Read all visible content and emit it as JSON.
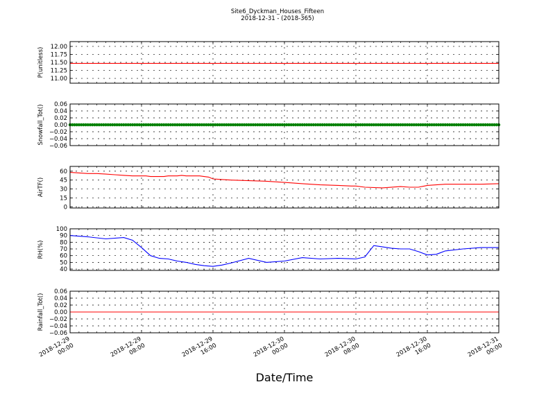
{
  "figure": {
    "title": "Site6_Dyckman_Houses_Fifteen",
    "subtitle": "2018-12-31 - (2018-365)",
    "xlabel": "Date/Time"
  },
  "chart_data": [
    {
      "type": "line",
      "ylabel": "P(unitless)",
      "ylim": [
        10.85,
        12.15
      ],
      "yticks": [
        "12.00",
        "11.75",
        "11.50",
        "11.25",
        "11.00"
      ],
      "ytick_values": [
        12.0,
        11.75,
        11.5,
        11.25,
        11.0
      ],
      "grid": true,
      "color": "#ff0000",
      "x": [
        "2018-12-29 00:00",
        "2018-12-31 00:00"
      ],
      "y": [
        11.47,
        11.47
      ]
    },
    {
      "type": "line",
      "ylabel": "Snowfall_Tot()",
      "ylim": [
        -0.06,
        0.06
      ],
      "yticks": [
        "0.06",
        "0.04",
        "0.02",
        "0.00",
        "−0.02",
        "−0.04",
        "−0.06"
      ],
      "ytick_values": [
        0.06,
        0.04,
        0.02,
        0.0,
        -0.02,
        -0.04,
        -0.06
      ],
      "grid": true,
      "color": "#008000",
      "markers": true,
      "x": [
        "2018-12-29 00:00",
        "2018-12-31 00:00"
      ],
      "y": [
        0,
        0
      ]
    },
    {
      "type": "line",
      "ylabel": "AirTF()",
      "ylim": [
        -2,
        68
      ],
      "yticks": [
        "60",
        "45",
        "30",
        "15",
        "0"
      ],
      "ytick_values": [
        60,
        45,
        30,
        15,
        0
      ],
      "grid": true,
      "color": "#ff0000",
      "x": [
        "2018-12-29 00:00",
        "2018-12-29 01:00",
        "2018-12-29 02:00",
        "2018-12-29 03:00",
        "2018-12-29 04:00",
        "2018-12-29 05:00",
        "2018-12-29 06:00",
        "2018-12-29 07:00",
        "2018-12-29 07:30",
        "2018-12-29 08:00",
        "2018-12-29 08:30",
        "2018-12-29 09:00",
        "2018-12-29 10:00",
        "2018-12-29 10:30",
        "2018-12-29 11:00",
        "2018-12-29 11:30",
        "2018-12-29 12:00",
        "2018-12-29 12:30",
        "2018-12-29 13:00",
        "2018-12-29 13:30",
        "2018-12-29 14:00",
        "2018-12-29 14:30",
        "2018-12-29 15:00",
        "2018-12-29 15:30",
        "2018-12-29 16:00",
        "2018-12-29 17:00",
        "2018-12-29 18:00",
        "2018-12-29 20:00",
        "2018-12-29 22:00",
        "2018-12-30 00:00",
        "2018-12-30 02:00",
        "2018-12-30 04:00",
        "2018-12-30 06:00",
        "2018-12-30 07:30",
        "2018-12-30 07:50",
        "2018-12-30 08:00",
        "2018-12-30 09:00",
        "2018-12-30 11:00",
        "2018-12-30 13:00",
        "2018-12-30 14:00",
        "2018-12-30 15:00",
        "2018-12-30 15:40",
        "2018-12-30 16:00",
        "2018-12-30 17:00",
        "2018-12-30 18:00",
        "2018-12-30 20:00",
        "2018-12-30 22:00",
        "2018-12-31 00:00"
      ],
      "y": [
        58,
        57,
        56,
        56,
        55,
        54,
        53,
        52,
        52,
        52,
        52,
        51,
        51,
        51,
        52,
        52,
        52,
        53,
        52,
        52,
        52,
        52,
        51,
        50,
        47,
        46,
        45,
        44,
        43,
        41,
        39,
        37,
        36,
        35,
        35,
        35,
        33,
        32,
        34,
        33,
        33,
        35,
        36,
        37,
        38,
        38,
        38,
        39
      ]
    },
    {
      "type": "line",
      "ylabel": "RH(%)",
      "ylim": [
        38,
        100
      ],
      "yticks": [
        "100",
        "90",
        "80",
        "70",
        "60",
        "50",
        "40"
      ],
      "ytick_values": [
        100,
        90,
        80,
        70,
        60,
        50,
        40
      ],
      "grid": true,
      "color": "#0000ff",
      "x": [
        "2018-12-29 00:00",
        "2018-12-29 02:00",
        "2018-12-29 04:00",
        "2018-12-29 06:00",
        "2018-12-29 07:00",
        "2018-12-29 08:00",
        "2018-12-29 09:00",
        "2018-12-29 10:00",
        "2018-12-29 11:00",
        "2018-12-29 12:00",
        "2018-12-29 13:00",
        "2018-12-29 14:00",
        "2018-12-29 15:00",
        "2018-12-29 16:00",
        "2018-12-29 17:00",
        "2018-12-29 18:00",
        "2018-12-29 20:00",
        "2018-12-29 22:00",
        "2018-12-30 00:00",
        "2018-12-30 02:00",
        "2018-12-30 04:00",
        "2018-12-30 06:00",
        "2018-12-30 08:00",
        "2018-12-30 09:00",
        "2018-12-30 10:00",
        "2018-12-30 11:00",
        "2018-12-30 12:00",
        "2018-12-30 13:00",
        "2018-12-30 14:00",
        "2018-12-30 15:00",
        "2018-12-30 16:00",
        "2018-12-30 17:00",
        "2018-12-30 18:00",
        "2018-12-30 20:00",
        "2018-12-30 22:00",
        "2018-12-31 00:00"
      ],
      "y": [
        90,
        88,
        85,
        87,
        83,
        72,
        60,
        56,
        55,
        52,
        50,
        47,
        45,
        44,
        46,
        49,
        56,
        50,
        52,
        57,
        55,
        56,
        55,
        58,
        75,
        73,
        71,
        70,
        70,
        66,
        61,
        62,
        67,
        70,
        72,
        72
      ]
    },
    {
      "type": "line",
      "ylabel": "Rainfall_Tot()",
      "ylim": [
        -0.06,
        0.06
      ],
      "yticks": [
        "0.06",
        "0.04",
        "0.02",
        "0.00",
        "−0.02",
        "−0.04",
        "−0.06"
      ],
      "ytick_values": [
        0.06,
        0.04,
        0.02,
        0.0,
        -0.02,
        -0.04,
        -0.06
      ],
      "grid": true,
      "color": "#ff0000",
      "x": [
        "2018-12-29 00:00",
        "2018-12-31 00:00"
      ],
      "y": [
        0,
        0
      ]
    }
  ],
  "xaxis": {
    "ticks": [
      {
        "line1": "2018-12-29",
        "line2": "00:00"
      },
      {
        "line1": "2018-12-29",
        "line2": "08:00"
      },
      {
        "line1": "2018-12-29",
        "line2": "16:00"
      },
      {
        "line1": "2018-12-30",
        "line2": "00:00"
      },
      {
        "line1": "2018-12-30",
        "line2": "08:00"
      },
      {
        "line1": "2018-12-30",
        "line2": "16:00"
      },
      {
        "line1": "2018-12-31",
        "line2": "00:00"
      }
    ],
    "tick_hours": [
      0,
      8,
      16,
      24,
      32,
      40,
      48
    ],
    "range_hours": [
      0,
      48
    ]
  }
}
